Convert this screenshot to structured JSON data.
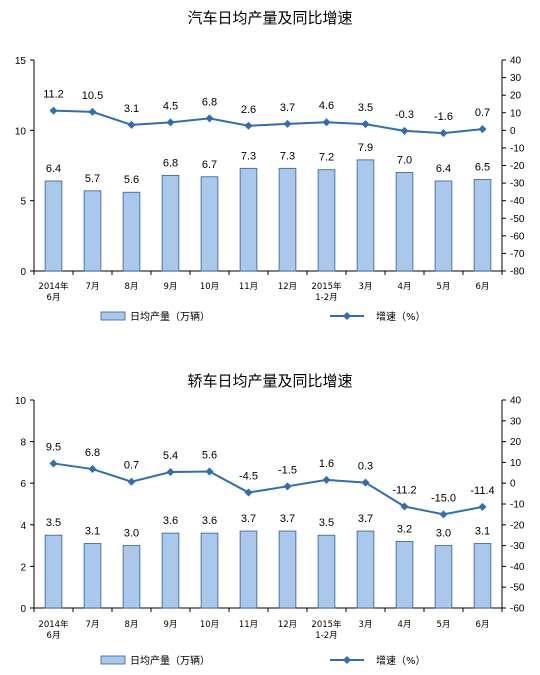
{
  "chart_data": [
    {
      "type": "bar+line",
      "title": "汽车日均产量及同比增速",
      "categories": [
        [
          "2014年",
          "6月"
        ],
        [
          "7月"
        ],
        [
          "8月"
        ],
        [
          "9月"
        ],
        [
          "10月"
        ],
        [
          "11月"
        ],
        [
          "12月"
        ],
        [
          "2015年",
          "1-2月"
        ],
        [
          "3月"
        ],
        [
          "4月"
        ],
        [
          "5月"
        ],
        [
          "6月"
        ]
      ],
      "bar_series": {
        "name": "日均产量（万辆）",
        "values": [
          6.4,
          5.7,
          5.6,
          6.8,
          6.7,
          7.3,
          7.3,
          7.2,
          7.9,
          7.0,
          6.4,
          6.5
        ]
      },
      "line_series": {
        "name": "增速（%）",
        "values": [
          11.2,
          10.5,
          3.1,
          4.5,
          6.8,
          2.6,
          3.7,
          4.6,
          3.5,
          -0.3,
          -1.6,
          0.7
        ]
      },
      "ylim_left": [
        0,
        15
      ],
      "yticks_left": [
        0,
        5,
        10,
        15
      ],
      "ylim_right": [
        -80,
        40
      ],
      "yticks_right": [
        40,
        30,
        20,
        10,
        0,
        -10,
        -20,
        -30,
        -40,
        -50,
        -60,
        -70,
        -80
      ],
      "legend_position": "bottom",
      "grid": false
    },
    {
      "type": "bar+line",
      "title": "轿车日均产量及同比增速",
      "categories": [
        [
          "2014年",
          "6月"
        ],
        [
          "7月"
        ],
        [
          "8月"
        ],
        [
          "9月"
        ],
        [
          "10月"
        ],
        [
          "11月"
        ],
        [
          "12月"
        ],
        [
          "2015年",
          "1-2月"
        ],
        [
          "3月"
        ],
        [
          "4月"
        ],
        [
          "5月"
        ],
        [
          "6月"
        ]
      ],
      "bar_series": {
        "name": "日均产量（万辆）",
        "values": [
          3.5,
          3.1,
          3.0,
          3.6,
          3.6,
          3.7,
          3.7,
          3.5,
          3.7,
          3.2,
          3.0,
          3.1
        ]
      },
      "line_series": {
        "name": "增速（%）",
        "values": [
          9.5,
          6.8,
          0.7,
          5.4,
          5.6,
          -4.5,
          -1.5,
          1.6,
          0.3,
          -11.2,
          -15.0,
          -11.4
        ]
      },
      "ylim_left": [
        0,
        10
      ],
      "yticks_left": [
        0,
        2,
        4,
        6,
        8,
        10
      ],
      "ylim_right": [
        -60,
        40
      ],
      "yticks_right": [
        40,
        30,
        20,
        10,
        0,
        -10,
        -20,
        -30,
        -40,
        -50,
        -60
      ],
      "legend_position": "bottom",
      "grid": false
    }
  ],
  "colors": {
    "bar_fill": "#a9c8ec",
    "bar_stroke": "#2f5f98",
    "line": "#2f6db5",
    "axis": "#000000"
  }
}
